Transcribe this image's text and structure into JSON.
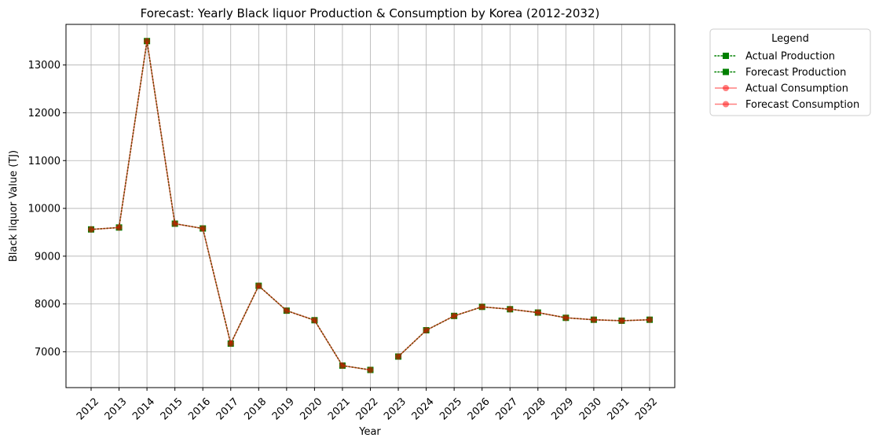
{
  "chart_data": {
    "type": "line",
    "title": "Forecast: Yearly Black liquor Production & Consumption by Korea (2012-2032)",
    "xlabel": "Year",
    "ylabel": "Black liquor Value (TJ)",
    "categories": [
      "2012",
      "2013",
      "2014",
      "2015",
      "2016",
      "2017",
      "2018",
      "2019",
      "2020",
      "2021",
      "2022",
      "2023",
      "2024",
      "2025",
      "2026",
      "2027",
      "2028",
      "2029",
      "2030",
      "2031",
      "2032"
    ],
    "yticks": [
      7000,
      8000,
      9000,
      10000,
      11000,
      12000,
      13000
    ],
    "ylim": [
      6250,
      13850
    ],
    "grid": true,
    "legend_title": "Legend",
    "legend_position": "outside-top-right",
    "series": [
      {
        "name": "Actual Production",
        "color": "#008000",
        "style": "dotted",
        "marker": "square",
        "values": [
          9560,
          9600,
          13500,
          9680,
          9580,
          7170,
          8380,
          7860,
          7660,
          6710,
          6620,
          null,
          null,
          null,
          null,
          null,
          null,
          null,
          null,
          null,
          null
        ]
      },
      {
        "name": "Forecast Production",
        "color": "#008000",
        "style": "dotted",
        "marker": "square",
        "values": [
          null,
          null,
          null,
          null,
          null,
          null,
          null,
          null,
          null,
          null,
          null,
          6900,
          7450,
          7750,
          7940,
          7890,
          7820,
          7710,
          7670,
          7650,
          7670
        ]
      },
      {
        "name": "Actual Consumption",
        "color": "#ff0000",
        "style": "solid",
        "marker": "circle",
        "alpha": 0.5,
        "values": [
          9560,
          9600,
          13500,
          9680,
          9580,
          7170,
          8380,
          7860,
          7660,
          6710,
          6620,
          null,
          null,
          null,
          null,
          null,
          null,
          null,
          null,
          null,
          null
        ]
      },
      {
        "name": "Forecast Consumption",
        "color": "#ff0000",
        "style": "solid",
        "marker": "circle",
        "alpha": 0.5,
        "values": [
          null,
          null,
          null,
          null,
          null,
          null,
          null,
          null,
          null,
          null,
          null,
          6900,
          7450,
          7750,
          7940,
          7890,
          7820,
          7710,
          7670,
          7650,
          7670
        ]
      }
    ]
  }
}
